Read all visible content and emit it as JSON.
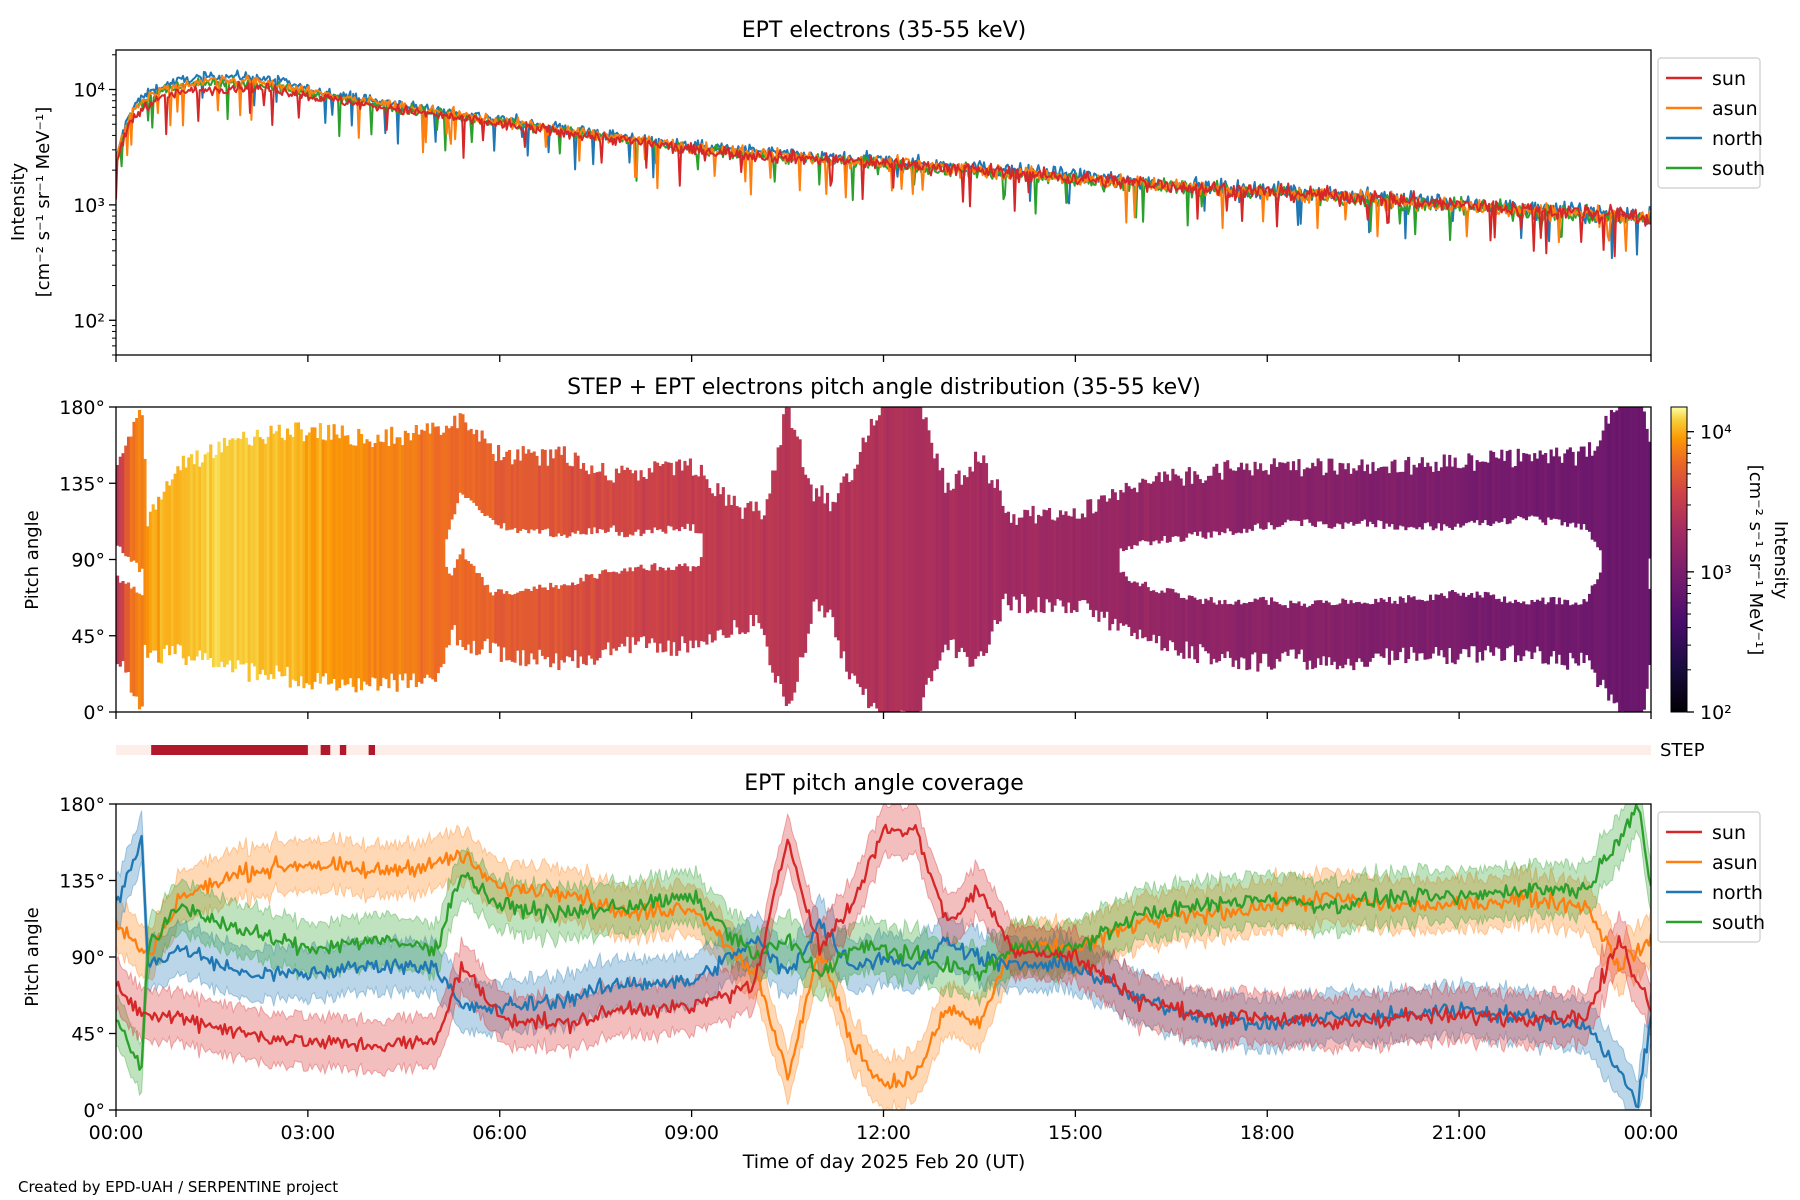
{
  "footer": {
    "credit": "Created by EPD-UAH / SERPENTINE project"
  },
  "colors": {
    "sun": "#d62728",
    "asun": "#ff7f0e",
    "north": "#1f77b4",
    "south": "#2ca02c",
    "step_bar": "#b2182b",
    "step_bg": "#fdeee9"
  },
  "chart_data": [
    {
      "id": "intensity",
      "type": "line",
      "title": "EPT electrons (35-55 keV)",
      "ylabel": [
        "Intensity",
        "[cm⁻² s⁻¹ sr⁻¹ MeV⁻¹]"
      ],
      "yscale": "log",
      "ylim": [
        50,
        22000
      ],
      "yticks": [
        {
          "value": 100,
          "label": "10²"
        },
        {
          "value": 1000,
          "label": "10³"
        },
        {
          "value": 10000,
          "label": "10⁴"
        }
      ],
      "xlim_hours": [
        0,
        24
      ],
      "legend": {
        "placement": "outside-right-top",
        "entries": [
          "sun",
          "asun",
          "north",
          "south"
        ]
      },
      "series": [
        {
          "name": "sun",
          "key": "sun",
          "x_hours": [
            0,
            0.3,
            0.6,
            1.0,
            1.5,
            2.0,
            2.5,
            3.0,
            4.0,
            5.0,
            6.0,
            7.0,
            8.0,
            9.0,
            10.0,
            11.0,
            12.0,
            13.0,
            14.0,
            15.0,
            16.0,
            17.0,
            18.0,
            19.0,
            20.0,
            21.0,
            22.0,
            23.0,
            24.0
          ],
          "y": [
            2200,
            6000,
            8000,
            9500,
            10000,
            10500,
            10000,
            8800,
            7200,
            6000,
            5000,
            4200,
            3600,
            3000,
            2700,
            2500,
            2300,
            2100,
            1900,
            1700,
            1550,
            1400,
            1300,
            1200,
            1100,
            1000,
            920,
            850,
            780
          ]
        },
        {
          "name": "asun",
          "key": "asun",
          "x_hours": [
            0,
            0.3,
            0.6,
            1.0,
            1.5,
            2.0,
            2.5,
            3.0,
            4.0,
            5.0,
            6.0,
            7.0,
            8.0,
            9.0,
            10.0,
            11.0,
            12.0,
            13.0,
            14.0,
            15.0,
            16.0,
            17.0,
            18.0,
            19.0,
            20.0,
            21.0,
            22.0,
            23.0,
            24.0
          ],
          "y": [
            2300,
            7000,
            9500,
            11000,
            12000,
            12000,
            11000,
            9600,
            7800,
            6400,
            5300,
            4400,
            3700,
            3100,
            2800,
            2500,
            2300,
            2100,
            1900,
            1700,
            1550,
            1400,
            1300,
            1200,
            1080,
            980,
            900,
            830,
            760
          ]
        },
        {
          "name": "north",
          "key": "north",
          "x_hours": [
            0,
            0.3,
            0.6,
            1.0,
            1.5,
            2.0,
            2.5,
            3.0,
            4.0,
            5.0,
            6.0,
            7.0,
            8.0,
            9.0,
            10.0,
            11.0,
            12.0,
            13.0,
            14.0,
            15.0,
            16.0,
            17.0,
            18.0,
            19.0,
            20.0,
            21.0,
            22.0,
            23.0,
            24.0
          ],
          "y": [
            2300,
            7500,
            10000,
            12000,
            13000,
            13000,
            12000,
            10000,
            8000,
            6600,
            5500,
            4600,
            3800,
            3200,
            2900,
            2600,
            2400,
            2200,
            2000,
            1800,
            1600,
            1450,
            1350,
            1250,
            1130,
            1020,
            940,
            860,
            790
          ]
        },
        {
          "name": "south",
          "key": "south",
          "x_hours": [
            0,
            0.3,
            0.6,
            1.0,
            1.5,
            2.0,
            2.5,
            3.0,
            4.0,
            5.0,
            6.0,
            7.0,
            8.0,
            9.0,
            10.0,
            11.0,
            12.0,
            13.0,
            14.0,
            15.0,
            16.0,
            17.0,
            18.0,
            19.0,
            20.0,
            21.0,
            22.0,
            23.0,
            24.0
          ],
          "y": [
            2200,
            6800,
            9000,
            10500,
            11500,
            11500,
            10500,
            9200,
            7500,
            6200,
            5200,
            4300,
            3600,
            3000,
            2700,
            2450,
            2250,
            2050,
            1850,
            1650,
            1500,
            1380,
            1270,
            1170,
            1060,
            960,
            880,
            810,
            740
          ]
        }
      ]
    },
    {
      "id": "pad",
      "type": "heatmap",
      "title": "STEP + EPT electrons pitch angle distribution (35-55 keV)",
      "ylabel": "Pitch angle",
      "ylim": [
        0,
        180
      ],
      "yticks": [
        {
          "value": 0,
          "label": "0°"
        },
        {
          "value": 45,
          "label": "45°"
        },
        {
          "value": 90,
          "label": "90°"
        },
        {
          "value": 135,
          "label": "135°"
        },
        {
          "value": 180,
          "label": "180°"
        }
      ],
      "xlim_hours": [
        0,
        24
      ],
      "colorbar": {
        "label": [
          "Intensity",
          "[cm⁻² s⁻¹ sr⁻¹ MeV⁻¹]"
        ],
        "scale": "log",
        "range": [
          100,
          15000
        ],
        "ticks": [
          {
            "value": 100,
            "label": "10²"
          },
          {
            "value": 1000,
            "label": "10³"
          },
          {
            "value": 10000,
            "label": "10⁴"
          }
        ],
        "colormap": "inferno"
      }
    },
    {
      "id": "step",
      "type": "bar",
      "label": "STEP",
      "xlim_hours": [
        0,
        24
      ],
      "intervals_hours": [
        [
          0.55,
          3.0
        ],
        [
          3.2,
          3.35
        ],
        [
          3.5,
          3.6
        ],
        [
          3.95,
          4.05
        ]
      ]
    },
    {
      "id": "coverage",
      "type": "line",
      "title": "EPT pitch angle coverage",
      "ylabel": "Pitch angle",
      "xlabel": "Time of day 2025 Feb 20 (UT)",
      "ylim": [
        0,
        180
      ],
      "yticks": [
        {
          "value": 0,
          "label": "0°"
        },
        {
          "value": 45,
          "label": "45°"
        },
        {
          "value": 90,
          "label": "90°"
        },
        {
          "value": 135,
          "label": "135°"
        },
        {
          "value": 180,
          "label": "180°"
        }
      ],
      "xlim_hours": [
        0,
        24
      ],
      "xticks": [
        {
          "value": 0,
          "label": "00:00"
        },
        {
          "value": 3,
          "label": "03:00"
        },
        {
          "value": 6,
          "label": "06:00"
        },
        {
          "value": 9,
          "label": "09:00"
        },
        {
          "value": 12,
          "label": "12:00"
        },
        {
          "value": 15,
          "label": "15:00"
        },
        {
          "value": 18,
          "label": "18:00"
        },
        {
          "value": 21,
          "label": "21:00"
        },
        {
          "value": 24,
          "label": "00:00"
        }
      ],
      "legend": {
        "placement": "outside-right-top",
        "entries": [
          "sun",
          "asun",
          "north",
          "south"
        ]
      },
      "band_halfwidth_deg": 15,
      "series": [
        {
          "name": "sun",
          "key": "sun",
          "x_hours": [
            0,
            0.5,
            1,
            2,
            3,
            4,
            5,
            5.4,
            6,
            7,
            8,
            9,
            10,
            10.5,
            11,
            11.5,
            12,
            12.5,
            13,
            13.5,
            14,
            15,
            16,
            17,
            18,
            19,
            20,
            21,
            22,
            23,
            23.5,
            24
          ],
          "y": [
            70,
            55,
            55,
            45,
            40,
            38,
            40,
            85,
            55,
            50,
            60,
            60,
            75,
            160,
            95,
            120,
            165,
            165,
            110,
            130,
            95,
            90,
            65,
            55,
            55,
            50,
            55,
            55,
            55,
            55,
            100,
            60
          ]
        },
        {
          "name": "asun",
          "key": "asun",
          "x_hours": [
            0,
            0.5,
            1,
            2,
            3,
            4,
            5,
            5.4,
            6,
            7,
            8,
            9,
            10,
            10.5,
            11,
            11.5,
            12,
            12.5,
            13,
            13.5,
            14,
            15,
            16,
            17,
            18,
            19,
            20,
            21,
            22,
            23,
            23.5,
            24
          ],
          "y": [
            110,
            90,
            125,
            140,
            145,
            140,
            145,
            150,
            130,
            130,
            115,
            120,
            80,
            20,
            95,
            40,
            15,
            20,
            60,
            50,
            95,
            95,
            110,
            115,
            120,
            125,
            120,
            120,
            125,
            120,
            85,
            100
          ]
        },
        {
          "name": "north",
          "key": "north",
          "x_hours": [
            0,
            0.4,
            0.5,
            1,
            2,
            3,
            4,
            5,
            5.4,
            6,
            7,
            8,
            9,
            10,
            10.5,
            11,
            11.5,
            12,
            12.5,
            13,
            13.5,
            14,
            15,
            16,
            17,
            18,
            19,
            20,
            21,
            22,
            23,
            23.8,
            24
          ],
          "y": [
            120,
            160,
            85,
            95,
            80,
            80,
            85,
            85,
            60,
            60,
            65,
            75,
            75,
            100,
            80,
            110,
            85,
            90,
            85,
            100,
            90,
            85,
            85,
            65,
            55,
            50,
            55,
            55,
            60,
            55,
            50,
            5,
            55
          ]
        },
        {
          "name": "south",
          "key": "south",
          "x_hours": [
            0,
            0.4,
            0.5,
            1,
            2,
            3,
            4,
            5,
            5.4,
            6,
            7,
            8,
            9,
            10,
            10.5,
            11,
            11.5,
            12,
            12.5,
            13,
            13.5,
            14,
            15,
            16,
            17,
            18,
            19,
            20,
            21,
            22,
            23,
            23.8,
            24
          ],
          "y": [
            55,
            25,
            95,
            120,
            105,
            95,
            100,
            95,
            140,
            120,
            115,
            120,
            125,
            90,
            100,
            80,
            95,
            95,
            90,
            85,
            80,
            95,
            95,
            115,
            120,
            125,
            120,
            125,
            125,
            130,
            130,
            180,
            130
          ]
        }
      ]
    }
  ]
}
